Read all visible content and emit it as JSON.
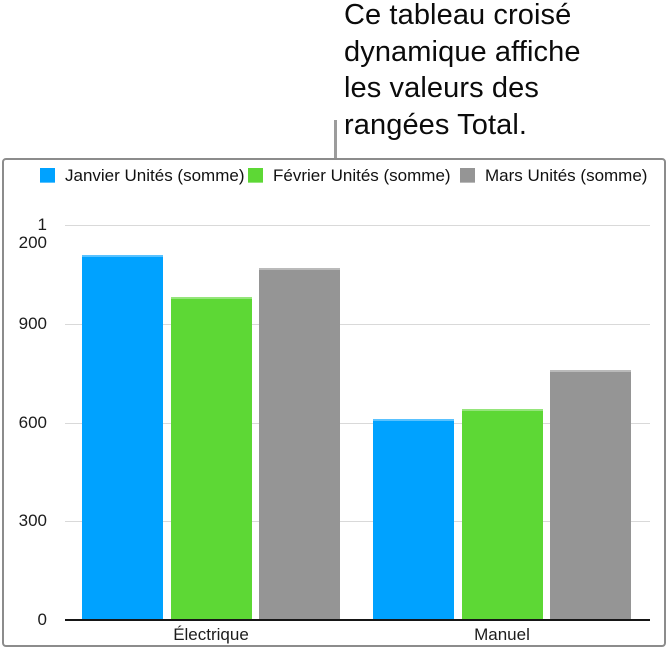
{
  "callout": {
    "text": "Ce tableau croisé\ndynamique affiche\nles valeurs des\nrangées Total."
  },
  "colors": {
    "janvier": "#00A2FF",
    "fevrier": "#5DD835",
    "mars": "#959595",
    "grid": "#D9D9D9",
    "axis": "#161616",
    "frame_border": "#8C8C8C",
    "connector": "#9C9C9C"
  },
  "chart_data": {
    "type": "bar",
    "title": "",
    "categories": [
      "Électrique",
      "Manuel"
    ],
    "series": [
      {
        "name": "Janvier Unités (somme)",
        "color": "#00A2FF",
        "values": [
          1110,
          610
        ]
      },
      {
        "name": "Février Unités (somme)",
        "color": "#5DD835",
        "values": [
          980,
          640
        ]
      },
      {
        "name": "Mars Unités (somme)",
        "color": "#959595",
        "values": [
          1070,
          760
        ]
      }
    ],
    "ylim": [
      0,
      1200
    ],
    "yticks": [
      0,
      300,
      600,
      900,
      1200
    ],
    "ytick_labels": [
      "0",
      "300",
      "600",
      "900",
      "1 200"
    ],
    "grid": true,
    "legend_position": "top"
  }
}
